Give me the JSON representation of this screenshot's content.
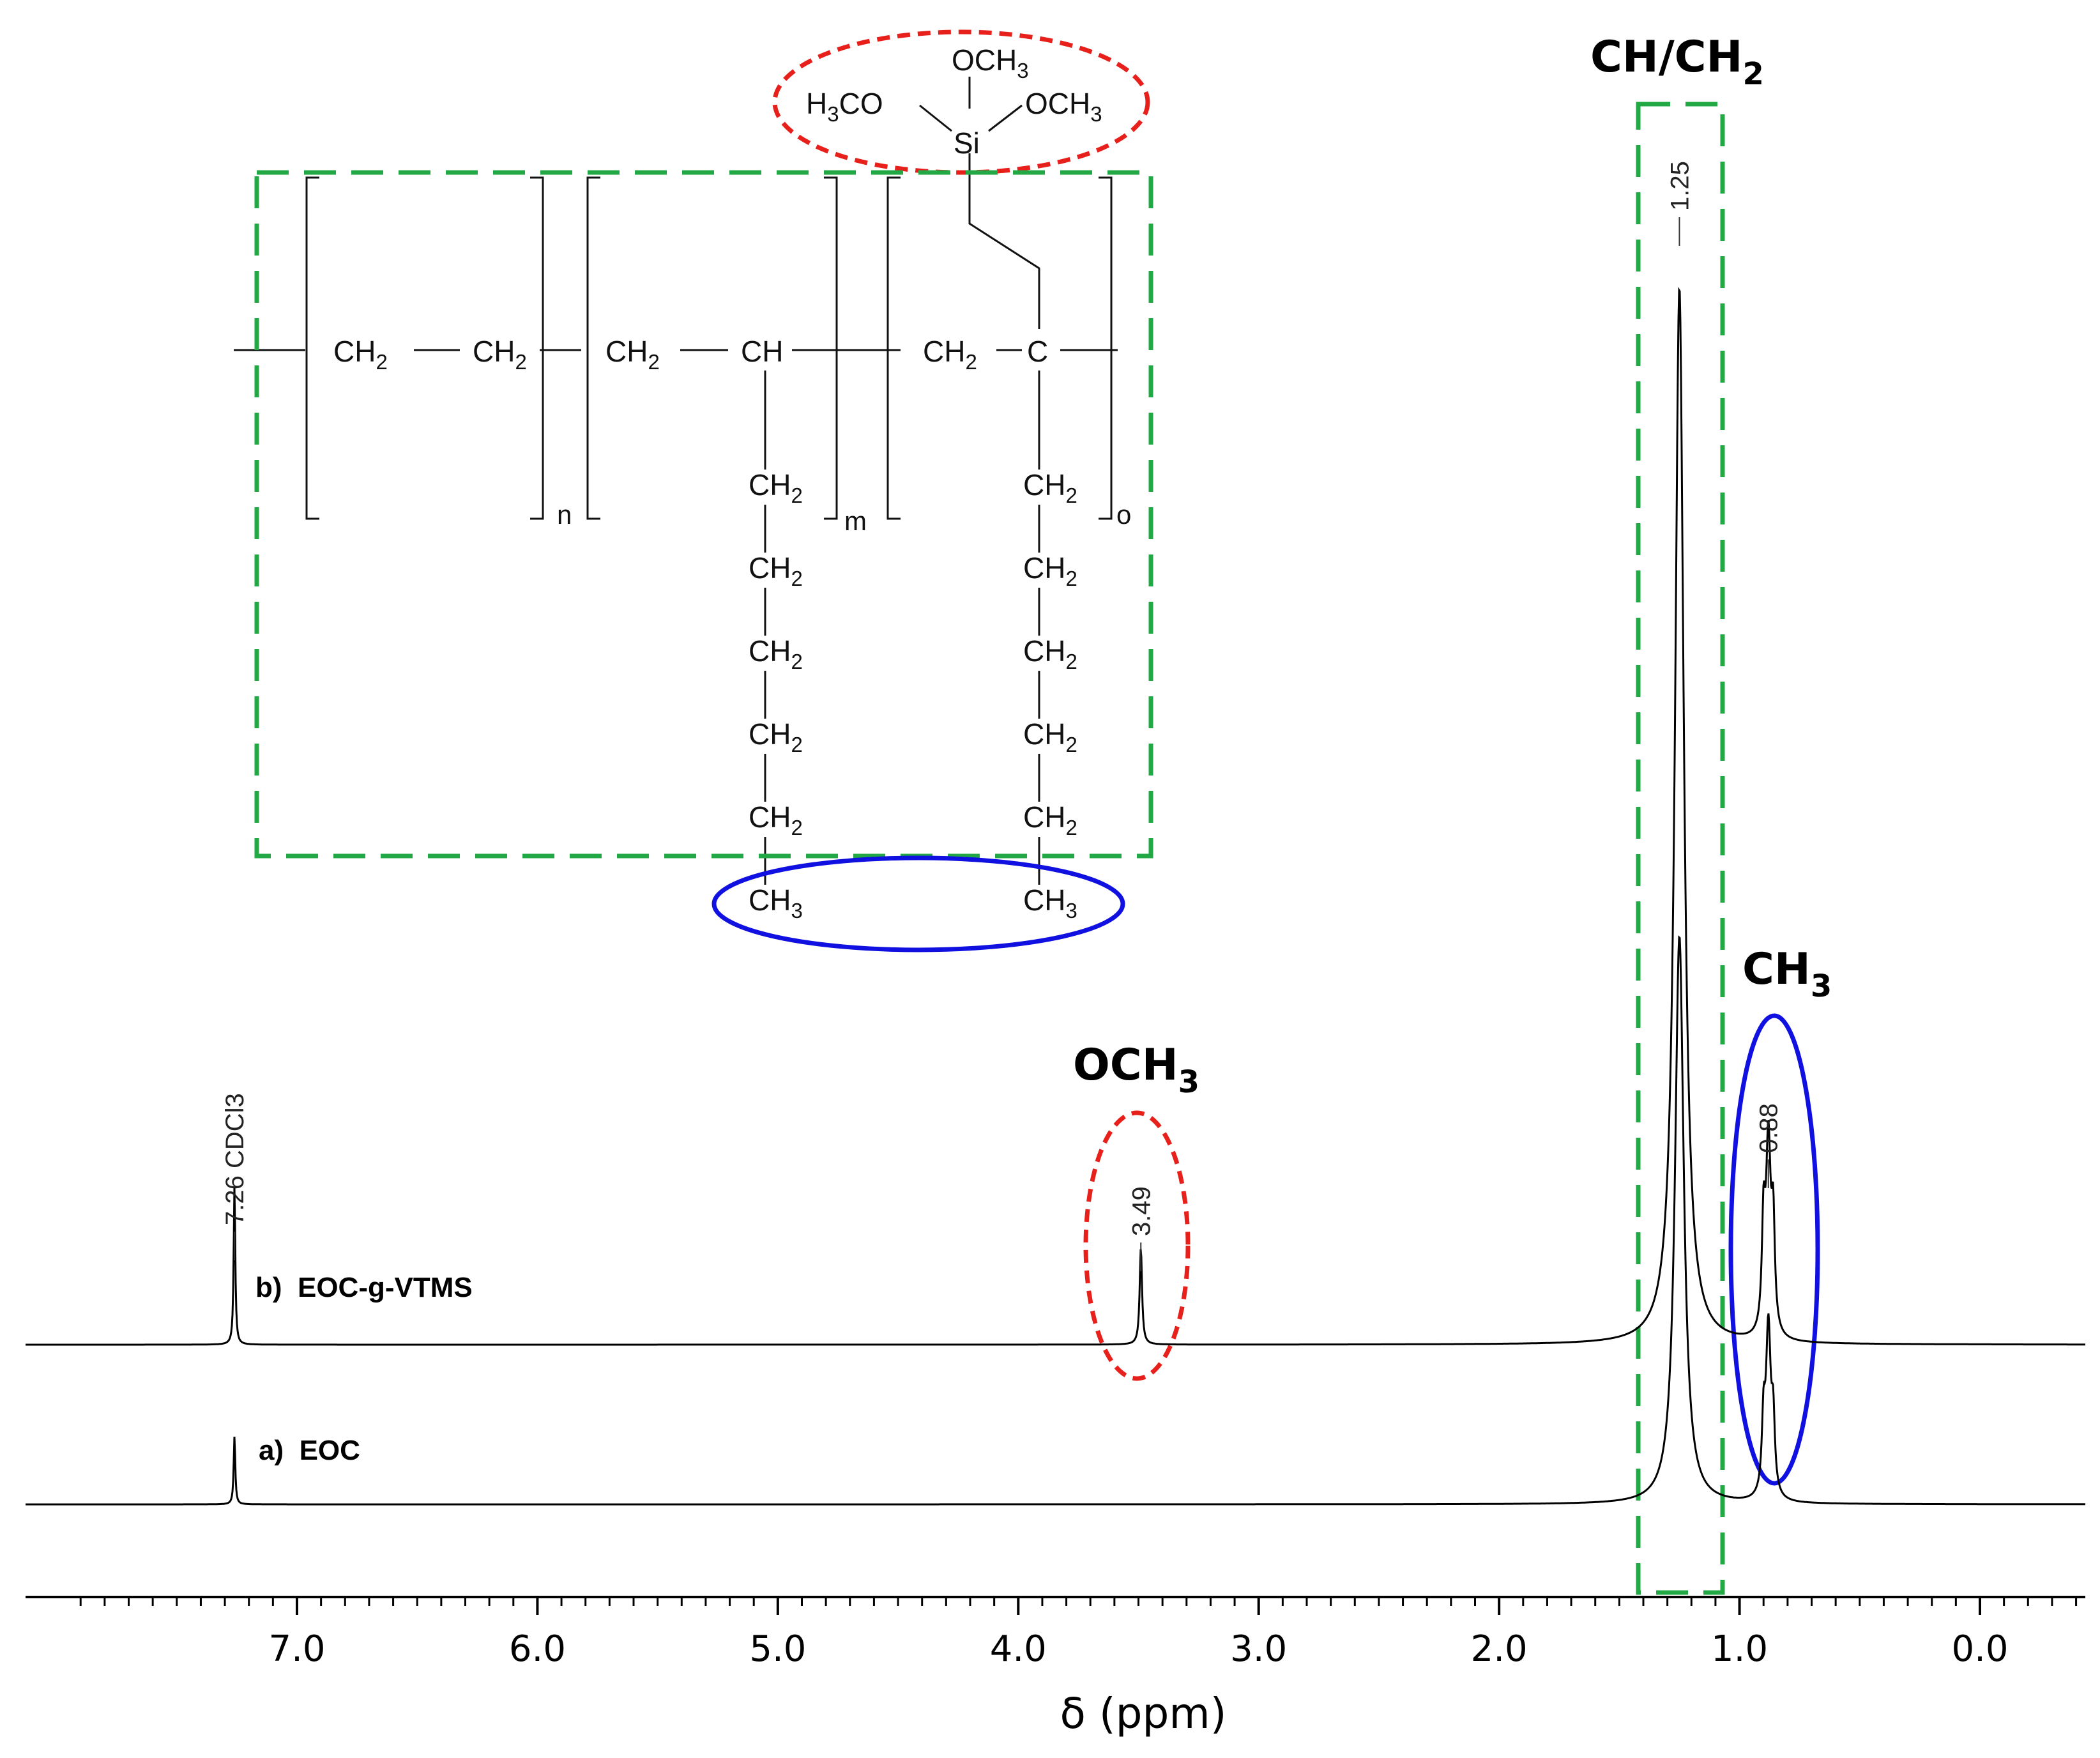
{
  "chart_data": {
    "type": "line",
    "xlabel": "δ (ppm)",
    "xlim": [
      8.0,
      -0.4
    ],
    "x_reversed": true,
    "x_ticks": [
      "7.0",
      "6.0",
      "5.0",
      "4.0",
      "3.0",
      "2.0",
      "1.0",
      "0.0"
    ],
    "x_tick_values": [
      7.0,
      6.0,
      5.0,
      4.0,
      3.0,
      2.0,
      1.0,
      0.0
    ],
    "grid": false,
    "series": [
      {
        "name": "b)  EOC-g-VTMS",
        "color": "#000000",
        "peaks": [
          {
            "ppm": 7.26,
            "height": 0.14,
            "width": 0.004
          },
          {
            "ppm": 3.49,
            "height": 0.085,
            "width": 0.006
          },
          {
            "ppm": 1.25,
            "height": 0.93,
            "width": 0.022
          },
          {
            "ppm": 0.88,
            "height": 0.17,
            "width": 0.012
          },
          {
            "ppm": 0.86,
            "height": 0.09,
            "width": 0.008
          },
          {
            "ppm": 0.9,
            "height": 0.09,
            "width": 0.008
          }
        ]
      },
      {
        "name": "a)  EOC",
        "color": "#000000",
        "peaks": [
          {
            "ppm": 7.26,
            "height": 0.06,
            "width": 0.004
          },
          {
            "ppm": 1.25,
            "height": 0.5,
            "width": 0.022
          },
          {
            "ppm": 0.88,
            "height": 0.15,
            "width": 0.012
          },
          {
            "ppm": 0.86,
            "height": 0.06,
            "width": 0.008
          },
          {
            "ppm": 0.9,
            "height": 0.06,
            "width": 0.008
          }
        ]
      }
    ],
    "peak_labels": [
      {
        "text": "7.26 CDCl3",
        "ppm": 7.26
      },
      {
        "text": "3.49",
        "ppm": 3.49
      },
      {
        "text": "1.25",
        "ppm": 1.25
      },
      {
        "text": "0.88",
        "ppm": 0.88
      }
    ],
    "annotations": {
      "och3": {
        "main": "OCH",
        "sub": "3",
        "color": "#e8201c"
      },
      "ch_ch2": {
        "main": "CH/CH",
        "sub": "2",
        "color": "#22a845"
      },
      "ch3": {
        "main": "CH",
        "sub": "3",
        "color": "#1010e0"
      }
    }
  },
  "structure": {
    "backbone": {
      "ch2_a": "CH",
      "ch2_b": "CH",
      "ch2_c": "CH",
      "ch": "CH",
      "ch2_d": "CH",
      "c": "C"
    },
    "sub2": "2",
    "sub3": "3",
    "repeat_n": "n",
    "repeat_m": "m",
    "repeat_o": "o",
    "chain_unit": "CH",
    "chain_end": "CH",
    "si": "Si",
    "och3_top": "OCH",
    "h3co": "H",
    "h3co_tail": "CO",
    "och3_right": "OCH"
  }
}
